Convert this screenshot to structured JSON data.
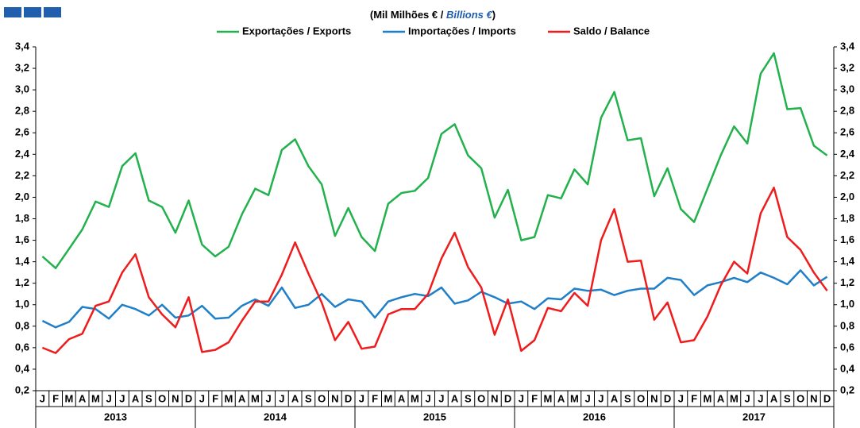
{
  "chart_data": {
    "type": "line",
    "subtitle_parts": [
      "(Mil Milhões € / ",
      "Billions €",
      ")"
    ],
    "categories": [
      "J",
      "F",
      "M",
      "A",
      "M",
      "J",
      "J",
      "A",
      "S",
      "O",
      "N",
      "D",
      "J",
      "F",
      "M",
      "A",
      "M",
      "J",
      "J",
      "A",
      "S",
      "O",
      "N",
      "D",
      "J",
      "F",
      "M",
      "A",
      "M",
      "J",
      "J",
      "A",
      "S",
      "O",
      "N",
      "D",
      "J",
      "F",
      "M",
      "A",
      "M",
      "J",
      "J",
      "A",
      "S",
      "O",
      "N",
      "D",
      "J",
      "F",
      "M",
      "A",
      "M",
      "J",
      "J",
      "A",
      "S",
      "O",
      "N",
      "D"
    ],
    "year_labels": [
      "2013",
      "2014",
      "2015",
      "2016",
      "2017"
    ],
    "series": [
      {
        "name": "Exportações / Exports",
        "color": "#22b14c",
        "values": [
          1.45,
          1.34,
          1.52,
          1.7,
          1.96,
          1.91,
          2.29,
          2.41,
          1.97,
          1.91,
          1.67,
          1.97,
          1.56,
          1.45,
          1.54,
          1.84,
          2.08,
          2.02,
          2.44,
          2.54,
          2.29,
          2.12,
          1.64,
          1.9,
          1.63,
          1.5,
          1.94,
          2.04,
          2.06,
          2.18,
          2.59,
          2.68,
          2.39,
          2.27,
          1.81,
          2.07,
          1.6,
          1.63,
          2.02,
          1.99,
          2.26,
          2.12,
          2.74,
          2.98,
          2.53,
          2.55,
          2.01,
          2.27,
          1.89,
          1.77,
          2.08,
          2.39,
          2.66,
          2.5,
          3.15,
          3.34,
          2.82,
          2.83,
          2.48,
          2.39
        ]
      },
      {
        "name": "Importações / Imports",
        "color": "#1f7fc8",
        "values": [
          0.85,
          0.79,
          0.84,
          0.98,
          0.96,
          0.87,
          1.0,
          0.96,
          0.9,
          1.0,
          0.88,
          0.9,
          0.99,
          0.87,
          0.88,
          0.99,
          1.05,
          0.99,
          1.16,
          0.97,
          1.0,
          1.1,
          0.98,
          1.05,
          1.03,
          0.88,
          1.03,
          1.07,
          1.1,
          1.08,
          1.16,
          1.01,
          1.04,
          1.12,
          1.07,
          1.01,
          1.03,
          0.96,
          1.06,
          1.05,
          1.15,
          1.13,
          1.14,
          1.09,
          1.13,
          1.15,
          1.15,
          1.25,
          1.23,
          1.09,
          1.18,
          1.21,
          1.25,
          1.21,
          1.3,
          1.25,
          1.19,
          1.32,
          1.18,
          1.26
        ]
      },
      {
        "name": "Saldo / Balance",
        "color": "#ee1c1c",
        "values": [
          0.6,
          0.55,
          0.68,
          0.73,
          0.99,
          1.03,
          1.3,
          1.47,
          1.07,
          0.91,
          0.79,
          1.07,
          0.56,
          0.58,
          0.65,
          0.85,
          1.03,
          1.03,
          1.28,
          1.58,
          1.29,
          1.02,
          0.67,
          0.84,
          0.59,
          0.61,
          0.91,
          0.96,
          0.96,
          1.1,
          1.43,
          1.67,
          1.35,
          1.16,
          0.72,
          1.05,
          0.57,
          0.67,
          0.97,
          0.94,
          1.11,
          0.99,
          1.6,
          1.89,
          1.4,
          1.41,
          0.86,
          1.02,
          0.65,
          0.67,
          0.89,
          1.18,
          1.4,
          1.29,
          1.85,
          2.09,
          1.63,
          1.51,
          1.3,
          1.13
        ]
      }
    ],
    "ylim": [
      0.2,
      3.4
    ],
    "yticks": [
      {
        "value": 0.2,
        "label": "0,2"
      },
      {
        "value": 0.4,
        "label": "0,4"
      },
      {
        "value": 0.6,
        "label": "0,6"
      },
      {
        "value": 0.8,
        "label": "0,8"
      },
      {
        "value": 1.0,
        "label": "1,0"
      },
      {
        "value": 1.2,
        "label": "1,2"
      },
      {
        "value": 1.4,
        "label": "1,4"
      },
      {
        "value": 1.6,
        "label": "1,6"
      },
      {
        "value": 1.8,
        "label": "1,8"
      },
      {
        "value": 2.0,
        "label": "2,0"
      },
      {
        "value": 2.2,
        "label": "2,2"
      },
      {
        "value": 2.4,
        "label": "2,4"
      },
      {
        "value": 2.6,
        "label": "2,6"
      },
      {
        "value": 2.8,
        "label": "2,8"
      },
      {
        "value": 3.0,
        "label": "3,0"
      },
      {
        "value": 3.2,
        "label": "3,2"
      },
      {
        "value": 3.4,
        "label": "3,4"
      }
    ],
    "y2lim": [
      0.2,
      3.4
    ],
    "y2ticks": [
      {
        "value": 0.2,
        "label": "0,2"
      },
      {
        "value": 0.4,
        "label": "0,4"
      },
      {
        "value": 0.6,
        "label": "0,6"
      },
      {
        "value": 0.8,
        "label": "0,8"
      },
      {
        "value": 1.0,
        "label": "1,0"
      },
      {
        "value": 1.2,
        "label": "1,2"
      },
      {
        "value": 1.4,
        "label": "1,4"
      },
      {
        "value": 1.6,
        "label": "1,6"
      },
      {
        "value": 1.8,
        "label": "1,8"
      },
      {
        "value": 2.0,
        "label": "2,0"
      },
      {
        "value": 2.2,
        "label": "2,2"
      },
      {
        "value": 2.4,
        "label": "2,4"
      },
      {
        "value": 2.6,
        "label": "2,6"
      },
      {
        "value": 2.8,
        "label": "2,8"
      },
      {
        "value": 3.0,
        "label": "3,0"
      },
      {
        "value": 3.2,
        "label": "3,2"
      },
      {
        "value": 3.4,
        "label": "3,4"
      }
    ],
    "grid": false
  }
}
